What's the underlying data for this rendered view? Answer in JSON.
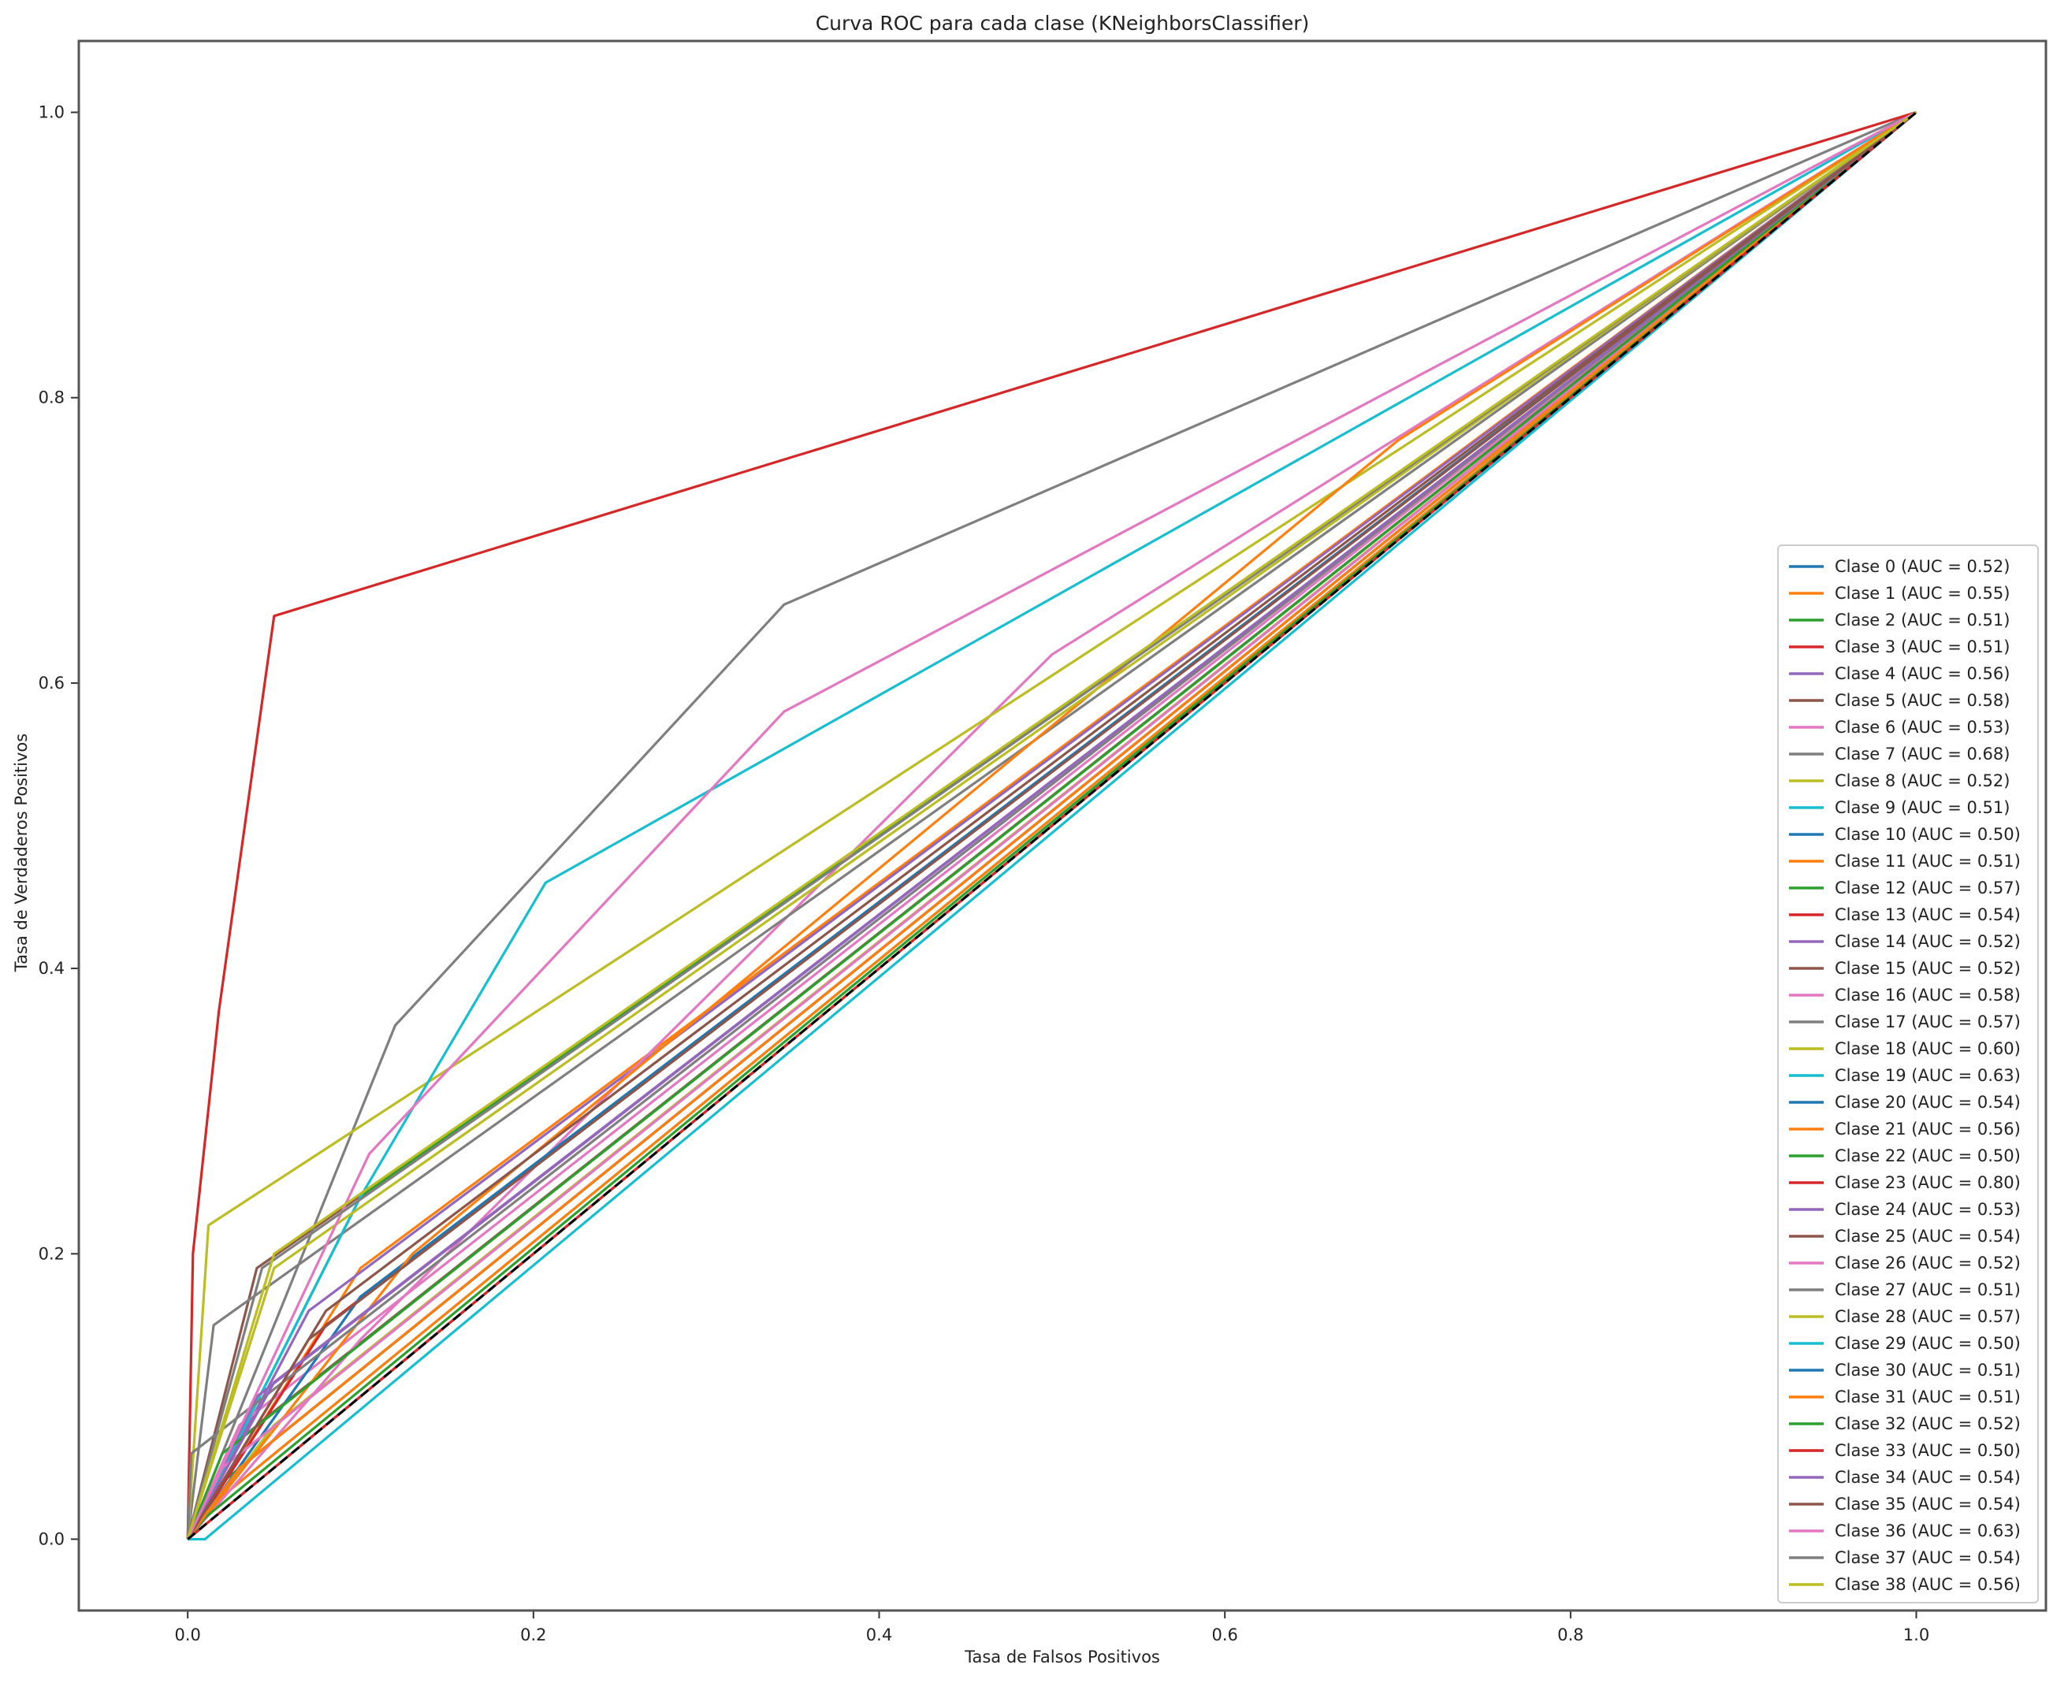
{
  "chart_data": {
    "type": "line",
    "title": "Curva ROC para cada clase (KNeighborsClassifier)",
    "xlabel": "Tasa de Falsos Positivos",
    "ylabel": "Tasa de Verdaderos Positivos",
    "xlim": [
      -0.063,
      1.075
    ],
    "ylim": [
      -0.05,
      1.05
    ],
    "xticks": [
      0.0,
      0.2,
      0.4,
      0.6,
      0.8,
      1.0
    ],
    "yticks": [
      0.0,
      0.2,
      0.4,
      0.6,
      0.8,
      1.0
    ],
    "xtick_labels": [
      "0.0",
      "0.2",
      "0.4",
      "0.6",
      "0.8",
      "1.0"
    ],
    "ytick_labels": [
      "0.0",
      "0.2",
      "0.4",
      "0.6",
      "0.8",
      "1.0"
    ],
    "grid": false,
    "legend_position": "lower-right",
    "diagonal": {
      "x": [
        0,
        1
      ],
      "y": [
        0,
        1
      ],
      "color": "#000000",
      "style": "dashed"
    },
    "series": [
      {
        "name": "Clase 0 (AUC = 0.52)",
        "color": "#1f77b4",
        "x": [
          0,
          0.02,
          1
        ],
        "y": [
          0,
          0.05,
          1
        ]
      },
      {
        "name": "Clase 1 (AUC = 0.55)",
        "color": "#ff7f0e",
        "x": [
          0,
          0.1,
          1
        ],
        "y": [
          0,
          0.19,
          1
        ]
      },
      {
        "name": "Clase 2 (AUC = 0.51)",
        "color": "#2ca02c",
        "x": [
          0,
          0.02,
          1
        ],
        "y": [
          0,
          0.04,
          1
        ]
      },
      {
        "name": "Clase 3 (AUC = 0.51)",
        "color": "#d62728",
        "x": [
          0,
          0.03,
          1
        ],
        "y": [
          0,
          0.05,
          1
        ]
      },
      {
        "name": "Clase 4 (AUC = 0.56)",
        "color": "#9467bd",
        "x": [
          0,
          0.07,
          1
        ],
        "y": [
          0,
          0.16,
          1
        ]
      },
      {
        "name": "Clase 5 (AUC = 0.58)",
        "color": "#8c564b",
        "x": [
          0,
          0.04,
          1
        ],
        "y": [
          0,
          0.19,
          1
        ]
      },
      {
        "name": "Clase 6 (AUC = 0.53)",
        "color": "#e377c2",
        "x": [
          0,
          0.03,
          1
        ],
        "y": [
          0,
          0.08,
          1
        ]
      },
      {
        "name": "Clase 7 (AUC = 0.68)",
        "color": "#7f7f7f",
        "x": [
          0,
          0.12,
          0.345,
          1
        ],
        "y": [
          0,
          0.36,
          0.655,
          1
        ]
      },
      {
        "name": "Clase 8 (AUC = 0.52)",
        "color": "#bcbd22",
        "x": [
          0,
          0.05,
          1
        ],
        "y": [
          0,
          0.08,
          1
        ]
      },
      {
        "name": "Clase 9 (AUC = 0.51)",
        "color": "#17becf",
        "x": [
          0,
          0.02,
          1
        ],
        "y": [
          0,
          0.03,
          1
        ]
      },
      {
        "name": "Clase 10 (AUC = 0.50)",
        "color": "#1f77b4",
        "x": [
          0,
          0.01,
          1
        ],
        "y": [
          0,
          0.01,
          1
        ]
      },
      {
        "name": "Clase 11 (AUC = 0.51)",
        "color": "#ff7f0e",
        "x": [
          0,
          0.02,
          1
        ],
        "y": [
          0,
          0.03,
          1
        ]
      },
      {
        "name": "Clase 12 (AUC = 0.57)",
        "color": "#2ca02c",
        "x": [
          0,
          0.1,
          1
        ],
        "y": [
          0,
          0.24,
          1
        ]
      },
      {
        "name": "Clase 13 (AUC = 0.54)",
        "color": "#d62728",
        "x": [
          0,
          0.08,
          1
        ],
        "y": [
          0,
          0.15,
          1
        ]
      },
      {
        "name": "Clase 14 (AUC = 0.52)",
        "color": "#9467bd",
        "x": [
          0,
          0.03,
          1
        ],
        "y": [
          0,
          0.07,
          1
        ]
      },
      {
        "name": "Clase 15 (AUC = 0.52)",
        "color": "#8c564b",
        "x": [
          0,
          0.04,
          1
        ],
        "y": [
          0,
          0.08,
          1
        ]
      },
      {
        "name": "Clase 16 (AUC = 0.58)",
        "color": "#e377c2",
        "x": [
          0,
          0.1,
          0.5,
          1
        ],
        "y": [
          0,
          0.14,
          0.62,
          1
        ]
      },
      {
        "name": "Clase 17 (AUC = 0.57)",
        "color": "#7f7f7f",
        "x": [
          0,
          0.015,
          1
        ],
        "y": [
          0,
          0.15,
          1
        ]
      },
      {
        "name": "Clase 18 (AUC = 0.60)",
        "color": "#bcbd22",
        "x": [
          0,
          0.012,
          1
        ],
        "y": [
          0,
          0.22,
          1
        ]
      },
      {
        "name": "Clase 19 (AUC = 0.63)",
        "color": "#17becf",
        "x": [
          0,
          0.1,
          0.207,
          1
        ],
        "y": [
          0,
          0.24,
          0.46,
          1
        ]
      },
      {
        "name": "Clase 20 (AUC = 0.54)",
        "color": "#1f77b4",
        "x": [
          0,
          0.1,
          1
        ],
        "y": [
          0,
          0.17,
          1
        ]
      },
      {
        "name": "Clase 21 (AUC = 0.56)",
        "color": "#ff7f0e",
        "x": [
          0,
          0.13,
          0.7,
          1
        ],
        "y": [
          0,
          0.2,
          0.77,
          1
        ]
      },
      {
        "name": "Clase 22 (AUC = 0.50)",
        "color": "#2ca02c",
        "x": [
          0,
          0.01,
          1
        ],
        "y": [
          0,
          0.015,
          1
        ]
      },
      {
        "name": "Clase 23 (AUC = 0.80)",
        "color": "#d62728",
        "x": [
          0,
          0.003,
          0.018,
          0.05,
          1
        ],
        "y": [
          0,
          0.2,
          0.37,
          0.647,
          1
        ]
      },
      {
        "name": "Clase 24 (AUC = 0.53)",
        "color": "#9467bd",
        "x": [
          0,
          0.04,
          1
        ],
        "y": [
          0,
          0.1,
          1
        ]
      },
      {
        "name": "Clase 25 (AUC = 0.54)",
        "color": "#8c564b",
        "x": [
          0,
          0.08,
          1
        ],
        "y": [
          0,
          0.16,
          1
        ]
      },
      {
        "name": "Clase 26 (AUC = 0.52)",
        "color": "#e377c2",
        "x": [
          0,
          0.02,
          1
        ],
        "y": [
          0,
          0.05,
          1
        ]
      },
      {
        "name": "Clase 27 (AUC = 0.51)",
        "color": "#7f7f7f",
        "x": [
          0,
          0.002,
          1
        ],
        "y": [
          0,
          0.06,
          1
        ]
      },
      {
        "name": "Clase 28 (AUC = 0.57)",
        "color": "#bcbd22",
        "x": [
          0,
          0.05,
          1
        ],
        "y": [
          0,
          0.19,
          1
        ]
      },
      {
        "name": "Clase 29 (AUC = 0.50)",
        "color": "#17becf",
        "x": [
          0,
          0.01,
          1
        ],
        "y": [
          0,
          0.0,
          1
        ]
      },
      {
        "name": "Clase 30 (AUC = 0.51)",
        "color": "#1f77b4",
        "x": [
          0,
          0.03,
          1
        ],
        "y": [
          0,
          0.05,
          1
        ]
      },
      {
        "name": "Clase 31 (AUC = 0.51)",
        "color": "#ff7f0e",
        "x": [
          0,
          0.03,
          1
        ],
        "y": [
          0,
          0.05,
          1
        ]
      },
      {
        "name": "Clase 32 (AUC = 0.52)",
        "color": "#2ca02c",
        "x": [
          0,
          0.02,
          1
        ],
        "y": [
          0,
          0.06,
          1
        ]
      },
      {
        "name": "Clase 33 (AUC = 0.50)",
        "color": "#d62728",
        "x": [
          0,
          0.01,
          1
        ],
        "y": [
          0,
          0.01,
          1
        ]
      },
      {
        "name": "Clase 34 (AUC = 0.54)",
        "color": "#9467bd",
        "x": [
          0,
          0.05,
          1
        ],
        "y": [
          0,
          0.11,
          1
        ]
      },
      {
        "name": "Clase 35 (AUC = 0.54)",
        "color": "#8c564b",
        "x": [
          0,
          0.07,
          1
        ],
        "y": [
          0,
          0.14,
          1
        ]
      },
      {
        "name": "Clase 36 (AUC = 0.63)",
        "color": "#e377c2",
        "x": [
          0,
          0.105,
          0.345,
          1
        ],
        "y": [
          0,
          0.27,
          0.58,
          1
        ]
      },
      {
        "name": "Clase 37 (AUC = 0.54)",
        "color": "#7f7f7f",
        "x": [
          0,
          0.043,
          1
        ],
        "y": [
          0,
          0.19,
          1
        ]
      },
      {
        "name": "Clase 38 (AUC = 0.56)",
        "color": "#bcbd22",
        "x": [
          0,
          0.05,
          1
        ],
        "y": [
          0,
          0.2,
          1
        ]
      }
    ]
  }
}
